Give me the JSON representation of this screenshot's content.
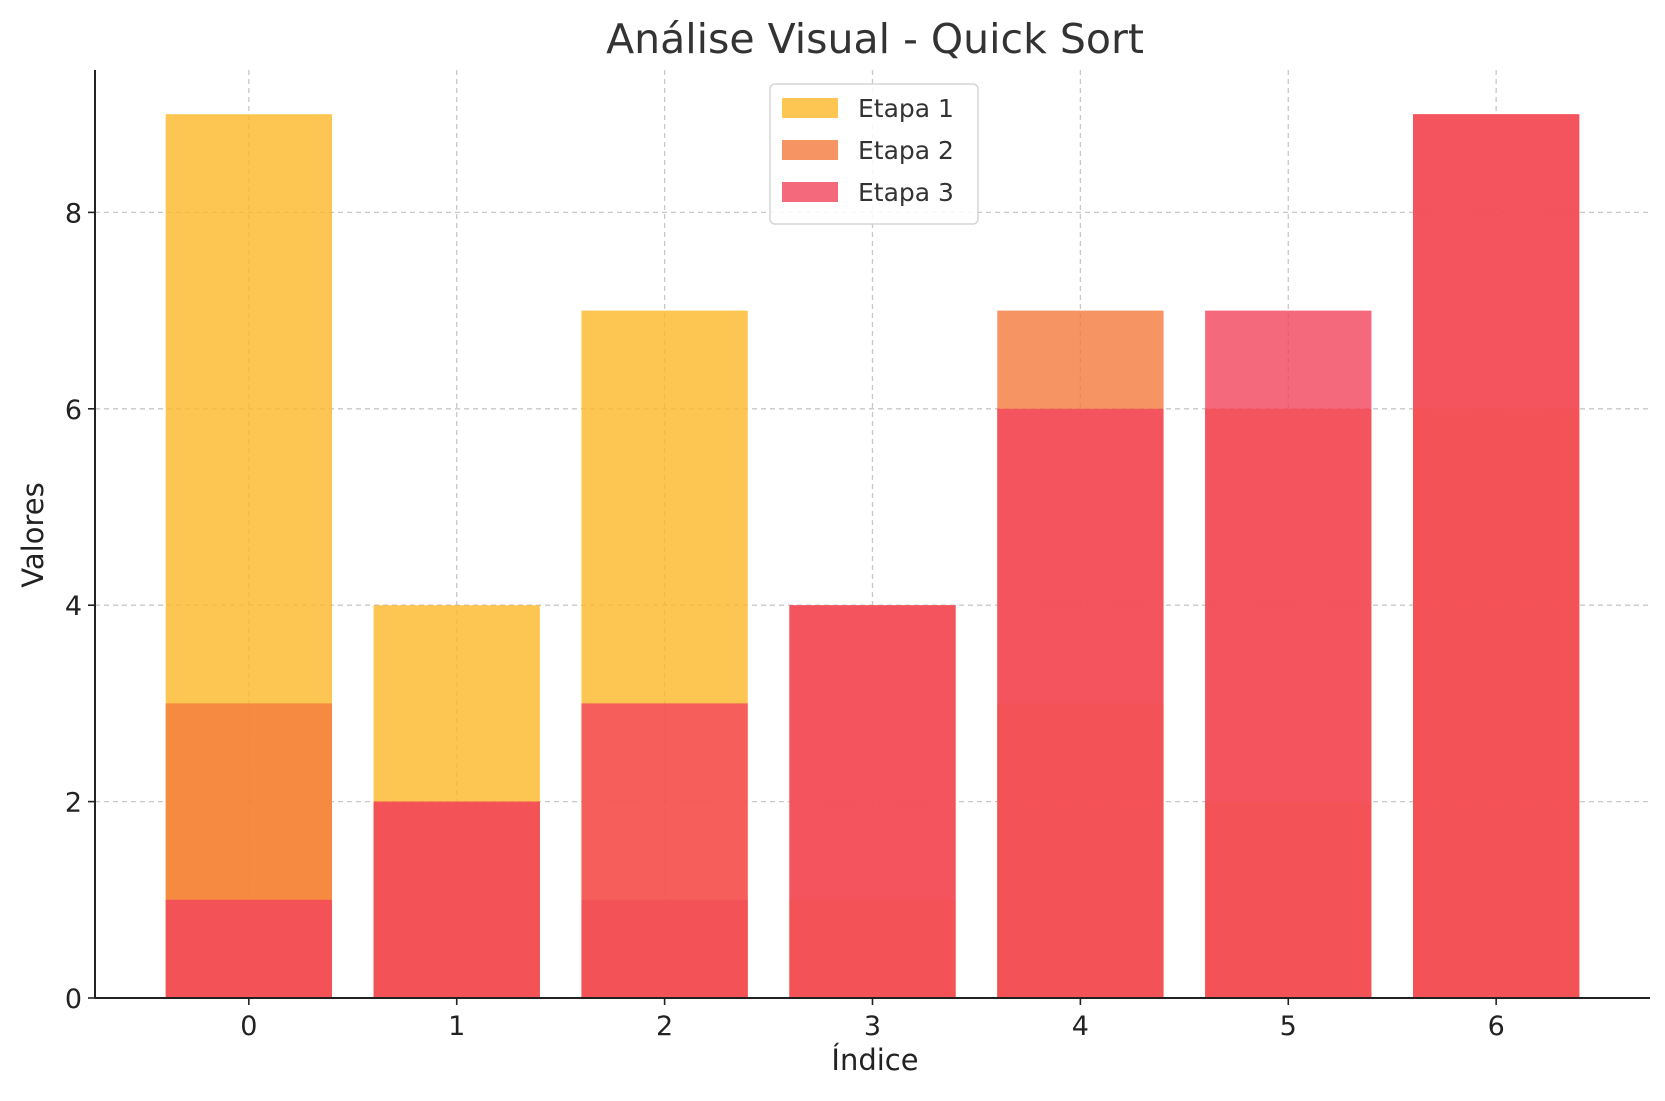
{
  "chart_data": {
    "type": "bar",
    "title": "Análise Visual - Quick Sort",
    "xlabel": "Índice",
    "ylabel": "Valores",
    "categories": [
      "0",
      "1",
      "2",
      "3",
      "4",
      "5",
      "6"
    ],
    "xticks": [
      "0",
      "1",
      "2",
      "3",
      "4",
      "5",
      "6"
    ],
    "yticks": [
      0,
      2,
      4,
      6,
      8
    ],
    "ylim": [
      0,
      9.45
    ],
    "grid": true,
    "legend_position": "top-center",
    "overlay": true,
    "series": [
      {
        "name": "Etapa 1",
        "color": "#fdb827",
        "opacity": 0.8,
        "values": [
          9,
          4,
          7,
          1,
          3,
          2,
          6
        ]
      },
      {
        "name": "Etapa 2",
        "color": "#f47a3c",
        "opacity": 0.8,
        "values": [
          3,
          2,
          1,
          4,
          7,
          6,
          9
        ]
      },
      {
        "name": "Etapa 3",
        "color": "#f2445d",
        "opacity": 0.8,
        "values": [
          1,
          2,
          3,
          4,
          6,
          7,
          9
        ]
      }
    ]
  }
}
